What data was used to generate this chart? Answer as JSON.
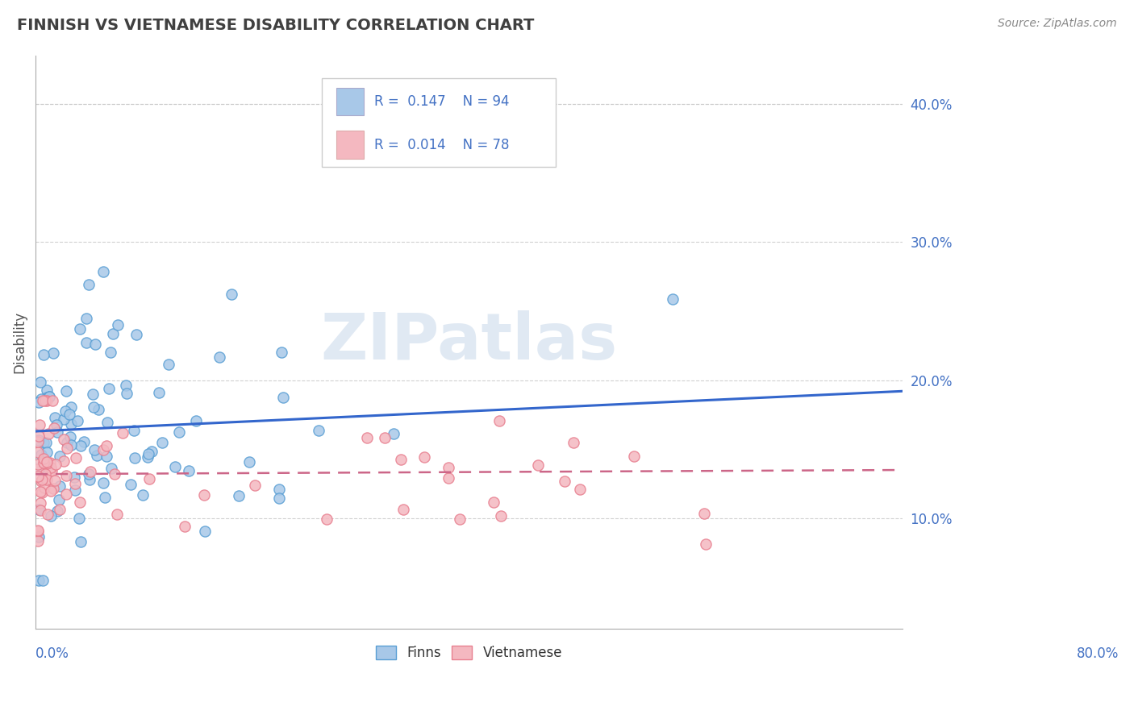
{
  "title": "FINNISH VS VIETNAMESE DISABILITY CORRELATION CHART",
  "source": "Source: ZipAtlas.com",
  "ylabel": "Disability",
  "xlim": [
    0.0,
    0.8
  ],
  "ylim": [
    0.02,
    0.435
  ],
  "yticks": [
    0.1,
    0.2,
    0.3,
    0.4
  ],
  "ytick_labels": [
    "10.0%",
    "20.0%",
    "30.0%",
    "40.0%"
  ],
  "color_finns": "#a8c8e8",
  "color_viet": "#f4b8c0",
  "color_finns_edge": "#5a9fd4",
  "color_viet_edge": "#e88090",
  "color_finns_line": "#3366cc",
  "color_viet_line": "#cc6688",
  "watermark": "ZIPatlas",
  "background_color": "#ffffff",
  "grid_color": "#cccccc",
  "title_color": "#404040",
  "title_fontsize": 14,
  "finns_line_start_y": 0.163,
  "finns_line_end_y": 0.192,
  "viet_line_start_y": 0.132,
  "viet_line_end_y": 0.135
}
